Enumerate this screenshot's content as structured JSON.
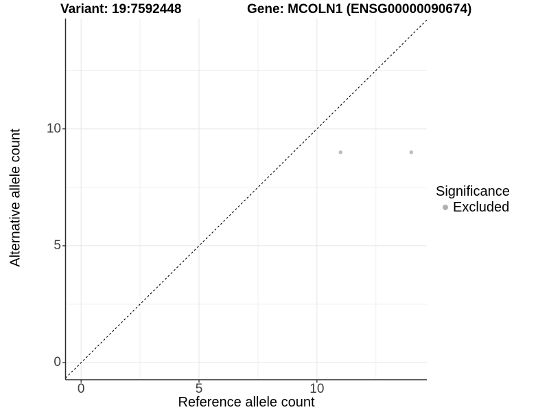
{
  "chart_data": {
    "type": "scatter",
    "titles": {
      "left": "Variant: 19:7592448",
      "right": "Gene: MCOLN1 (ENSG00000090674)"
    },
    "xlabel": "Reference allele count",
    "ylabel": "Alternative allele count",
    "xlim": [
      -0.66,
      14.66
    ],
    "ylim": [
      -0.73,
      14.72
    ],
    "x_ticks": [
      0,
      5,
      10
    ],
    "y_ticks": [
      0,
      5,
      10
    ],
    "x_minor_gridlines": [
      2.5,
      7.5,
      12.5
    ],
    "y_minor_gridlines": [
      2.5,
      7.5,
      12.5
    ],
    "grid": true,
    "identity_line": {
      "slope": 1,
      "intercept": 0,
      "style": "dashed",
      "color": "#000000"
    },
    "series": [
      {
        "name": "Excluded",
        "color": "#bdbdbd",
        "points": [
          {
            "x": 11,
            "y": 9
          },
          {
            "x": 14,
            "y": 9
          }
        ]
      }
    ],
    "legend": {
      "title": "Significance",
      "position": "right",
      "items": [
        {
          "label": "Excluded",
          "color": "#b0b0b0",
          "marker": "circle"
        }
      ]
    },
    "colors": {
      "grid_major": "#e5e5e5",
      "grid_minor": "#f0f0f0",
      "axis_line": "#2b2b2b",
      "tick_label": "#404040",
      "background": "#ffffff"
    }
  }
}
